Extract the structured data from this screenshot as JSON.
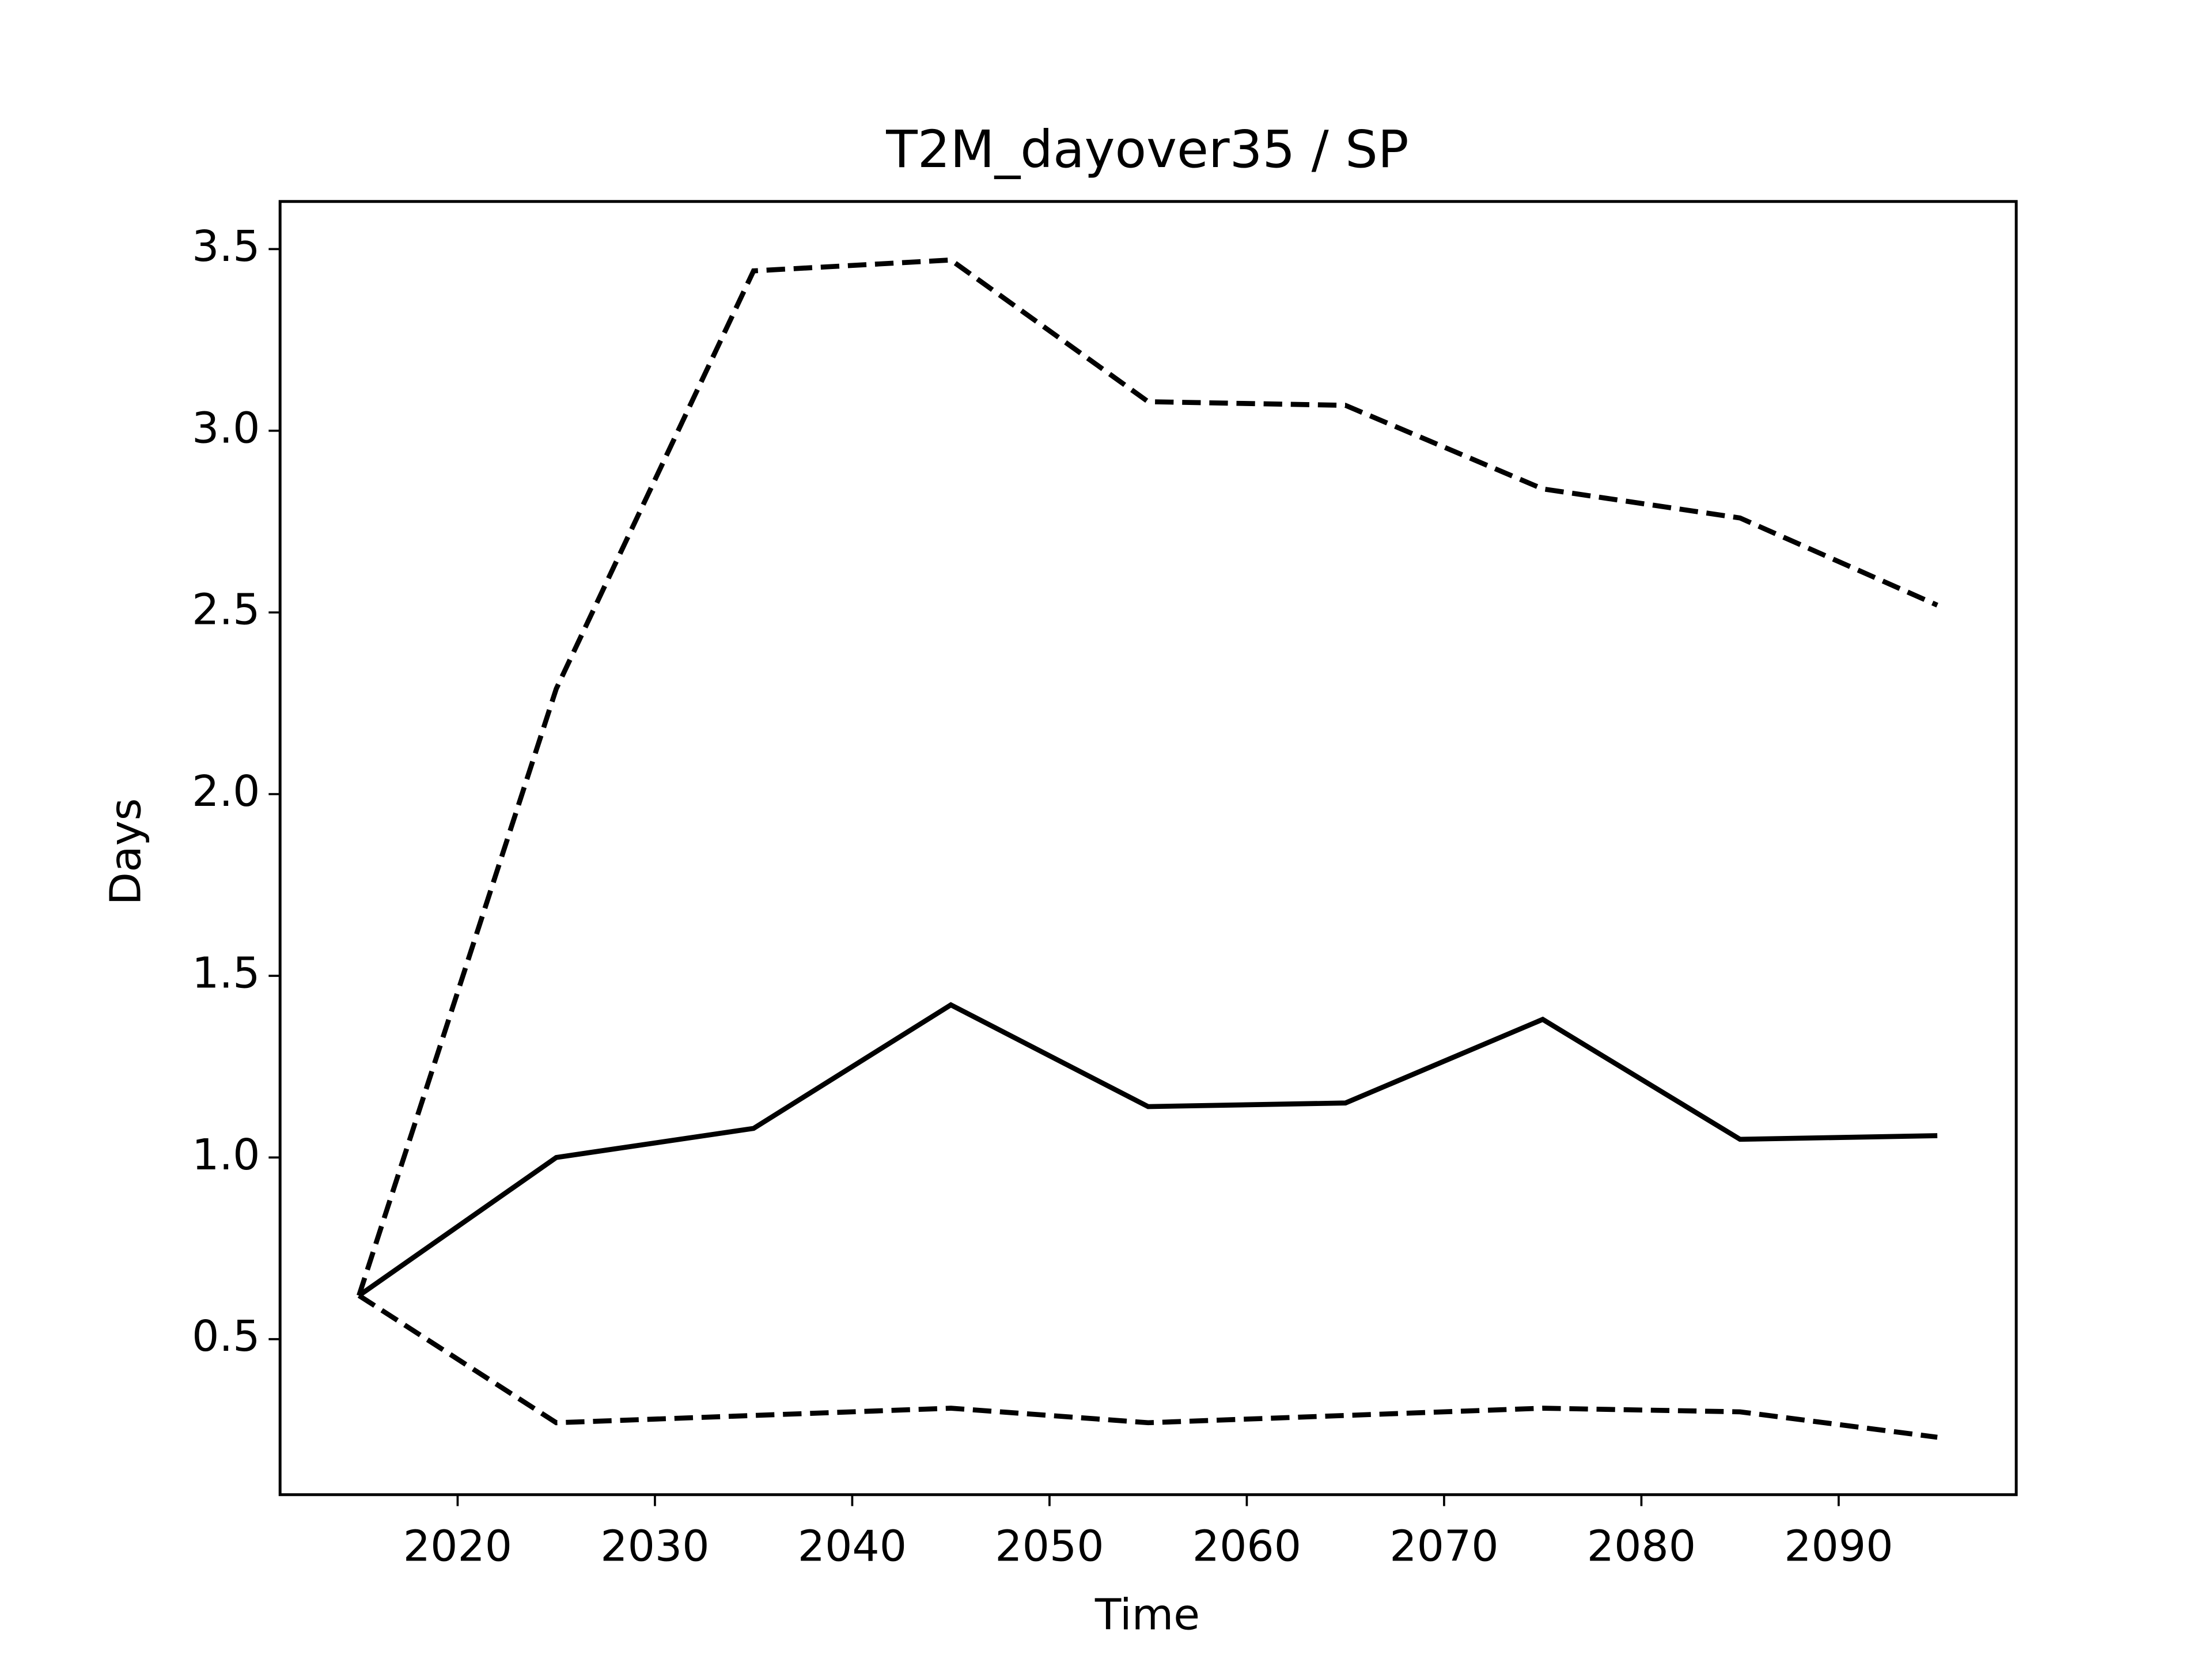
{
  "chart_data": {
    "type": "line",
    "title": "T2M_dayover35 / SP",
    "xlabel": "Time",
    "ylabel": "Days",
    "x": [
      2015,
      2025,
      2035,
      2045,
      2055,
      2065,
      2075,
      2085,
      2095
    ],
    "series": [
      {
        "color": "#000000",
        "linestyle": "solid",
        "values": [
          0.62,
          1.0,
          1.08,
          1.42,
          1.14,
          1.15,
          1.38,
          1.05,
          1.06
        ]
      },
      {
        "color": "#000000",
        "linestyle": "dashed",
        "values": [
          0.62,
          2.29,
          3.44,
          3.47,
          3.08,
          3.07,
          2.84,
          2.76,
          2.52
        ]
      },
      {
        "color": "#000000",
        "linestyle": "dashed",
        "values": [
          0.62,
          0.27,
          0.29,
          0.31,
          0.27,
          0.29,
          0.31,
          0.3,
          0.23
        ]
      }
    ],
    "xlim": [
      2011,
      2099
    ],
    "ylim": [
      0.072,
      3.631
    ],
    "xticks": [
      2020,
      2030,
      2040,
      2050,
      2060,
      2070,
      2080,
      2090
    ],
    "yticks": [
      {
        "value": 0.5,
        "label": "0.5"
      },
      {
        "value": 1.0,
        "label": "1.0"
      },
      {
        "value": 1.5,
        "label": "1.5"
      },
      {
        "value": 2.0,
        "label": "2.0"
      },
      {
        "value": 2.5,
        "label": "2.5"
      },
      {
        "value": 3.0,
        "label": "3.0"
      },
      {
        "value": 3.5,
        "label": "3.5"
      }
    ],
    "grid": false
  }
}
